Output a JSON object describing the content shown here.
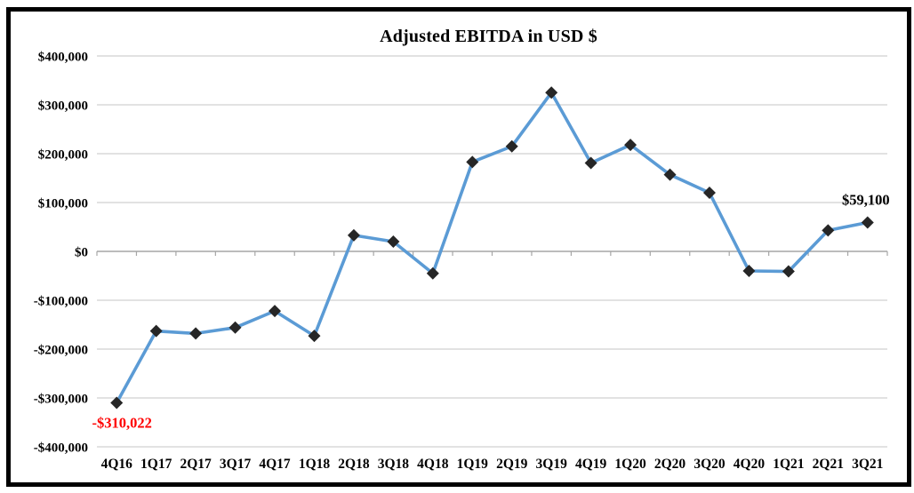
{
  "window": {
    "background": "#FFFFFF",
    "frame_border_color": "#000000"
  },
  "chart_data": {
    "type": "line",
    "title": "Adjusted EBITDA in USD $",
    "categories": [
      "4Q16",
      "1Q17",
      "2Q17",
      "3Q17",
      "4Q17",
      "1Q18",
      "2Q18",
      "3Q18",
      "4Q18",
      "1Q19",
      "2Q19",
      "3Q19",
      "4Q19",
      "1Q20",
      "2Q20",
      "3Q20",
      "4Q20",
      "1Q21",
      "2Q21",
      "3Q21"
    ],
    "values": [
      -310022,
      -163000,
      -168000,
      -156000,
      -122000,
      -173000,
      33000,
      20000,
      -45000,
      183000,
      215000,
      325000,
      181000,
      218000,
      157000,
      120000,
      -40000,
      -41000,
      43000,
      59100
    ],
    "xlabel": "",
    "ylabel": "",
    "ylim": [
      -400000,
      400000
    ],
    "ytick_step": 100000,
    "ytick_labels": [
      "$400,000",
      "$300,000",
      "$200,000",
      "$100,000",
      "$0",
      "-$100,000",
      "-$200,000",
      "-$300,000",
      "-$400,000"
    ],
    "grid": true,
    "legend": "none",
    "line_color": "#5B9BD5",
    "marker_shape": "diamond",
    "marker_color": "#262626",
    "gridline_color": "#D9D9D9",
    "axis_line_color": "#A6A6A6",
    "annotations": [
      {
        "category": "4Q16",
        "text": "-$310,022",
        "color": "#FF0000",
        "position": "below"
      },
      {
        "category": "3Q21",
        "text": "$59,100",
        "color": "#000000",
        "position": "above"
      }
    ]
  }
}
